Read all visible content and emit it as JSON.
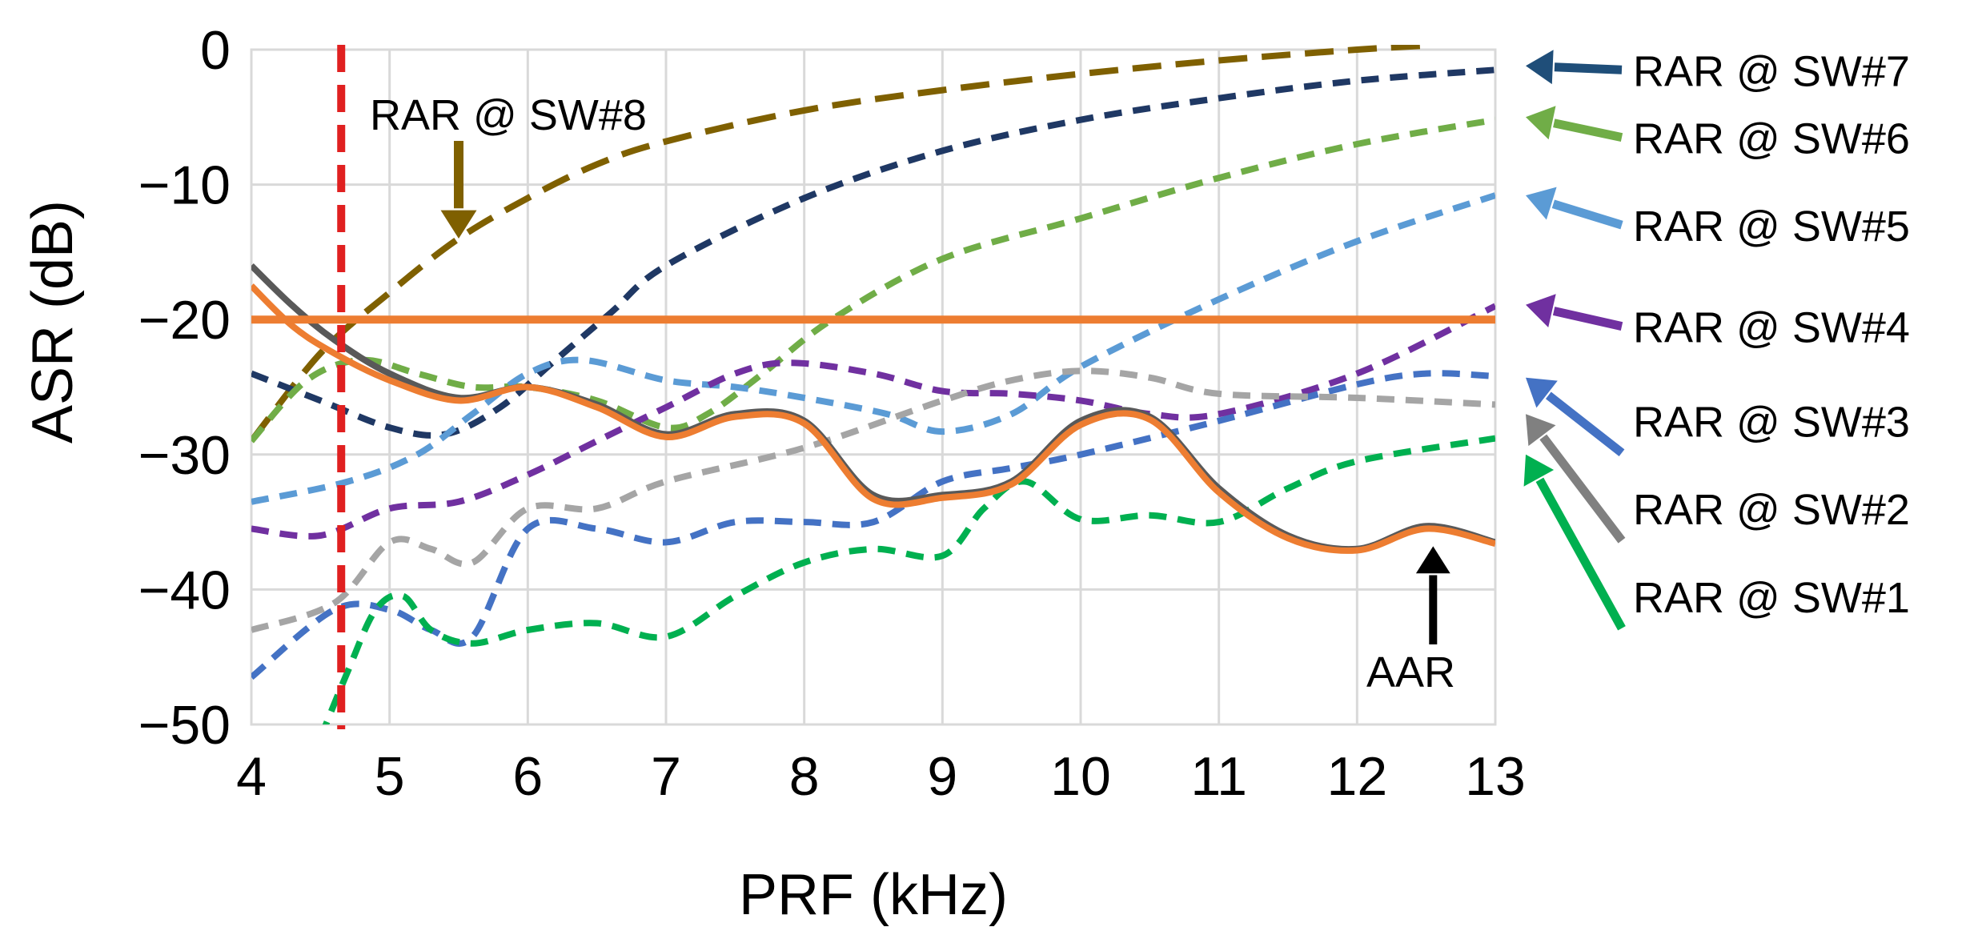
{
  "chart_data": {
    "type": "line",
    "title": "",
    "xlabel": "PRF (kHz)",
    "ylabel": "ASR (dB)",
    "xlim": [
      4,
      13
    ],
    "ylim": [
      -50,
      0
    ],
    "x_ticks": [
      4,
      5,
      6,
      7,
      8,
      9,
      10,
      11,
      12,
      13
    ],
    "y_ticks": [
      0,
      -10,
      -20,
      -30,
      -40,
      -50
    ],
    "x_tick_labels": [
      "4",
      "5",
      "6",
      "7",
      "8",
      "9",
      "10",
      "11",
      "12",
      "13"
    ],
    "y_tick_labels": [
      "0",
      "−10",
      "−20",
      "−30",
      "−40",
      "−50"
    ],
    "grid": true,
    "threshold": {
      "value": -20,
      "color": "#ed7d31"
    },
    "marker_line": {
      "x": 4.65,
      "color": "#e02020"
    },
    "series": [
      {
        "name": "RAR @ SW#8",
        "color": "#7f6000",
        "style": "dash-long",
        "points": [
          [
            4,
            -29
          ],
          [
            4.5,
            -22.5
          ],
          [
            5,
            -18
          ],
          [
            5.5,
            -14
          ],
          [
            6,
            -11
          ],
          [
            6.5,
            -8.5
          ],
          [
            7,
            -6.8
          ],
          [
            8,
            -4.5
          ],
          [
            9,
            -3
          ],
          [
            10,
            -1.8
          ],
          [
            11,
            -0.8
          ],
          [
            12,
            0
          ],
          [
            12.5,
            0.3
          ]
        ]
      },
      {
        "name": "RAR @ SW#7",
        "color": "#1f3864",
        "style": "dash",
        "points": [
          [
            4,
            -24
          ],
          [
            4.5,
            -26
          ],
          [
            5,
            -28
          ],
          [
            5.4,
            -28.5
          ],
          [
            5.8,
            -26.5
          ],
          [
            6.2,
            -23
          ],
          [
            6.6,
            -19.5
          ],
          [
            7,
            -16
          ],
          [
            8,
            -11
          ],
          [
            9,
            -7.5
          ],
          [
            10,
            -5.2
          ],
          [
            11,
            -3.6
          ],
          [
            12,
            -2.3
          ],
          [
            13,
            -1.5
          ]
        ]
      },
      {
        "name": "RAR @ SW#6",
        "color": "#70ad47",
        "style": "dash",
        "points": [
          [
            4,
            -29
          ],
          [
            4.4,
            -24.5
          ],
          [
            4.8,
            -23
          ],
          [
            5.2,
            -24
          ],
          [
            5.6,
            -25
          ],
          [
            6,
            -25
          ],
          [
            6.5,
            -26
          ],
          [
            7,
            -28
          ],
          [
            7.3,
            -27
          ],
          [
            7.7,
            -24
          ],
          [
            8.2,
            -20
          ],
          [
            9,
            -15.5
          ],
          [
            10,
            -12.5
          ],
          [
            11,
            -9.5
          ],
          [
            12,
            -7
          ],
          [
            13,
            -5.2
          ]
        ]
      },
      {
        "name": "RAR @ SW#5",
        "color": "#5b9bd5",
        "style": "dash",
        "points": [
          [
            4,
            -33.5
          ],
          [
            4.7,
            -32
          ],
          [
            5.2,
            -30
          ],
          [
            5.6,
            -27
          ],
          [
            6,
            -24
          ],
          [
            6.4,
            -23
          ],
          [
            7,
            -24.5
          ],
          [
            7.5,
            -25
          ],
          [
            8,
            -25.8
          ],
          [
            8.6,
            -27
          ],
          [
            9,
            -28.3
          ],
          [
            9.5,
            -27
          ],
          [
            10,
            -23.5
          ],
          [
            11,
            -18.5
          ],
          [
            12,
            -14.2
          ],
          [
            13,
            -10.8
          ]
        ]
      },
      {
        "name": "RAR @ SW#4",
        "color": "#7030a0",
        "style": "dash",
        "points": [
          [
            4,
            -35.5
          ],
          [
            4.5,
            -36
          ],
          [
            5,
            -34
          ],
          [
            5.5,
            -33.5
          ],
          [
            6,
            -31.5
          ],
          [
            6.5,
            -29
          ],
          [
            7,
            -26.5
          ],
          [
            7.5,
            -24
          ],
          [
            7.9,
            -23.2
          ],
          [
            8.5,
            -24
          ],
          [
            9,
            -25.3
          ],
          [
            9.5,
            -25.5
          ],
          [
            10,
            -26
          ],
          [
            10.5,
            -27
          ],
          [
            11,
            -27
          ],
          [
            12,
            -24
          ],
          [
            13,
            -19
          ]
        ]
      },
      {
        "name": "RAR @ SW#3",
        "color": "#4472c4",
        "style": "dash",
        "points": [
          [
            4,
            -46.5
          ],
          [
            4.6,
            -41.5
          ],
          [
            5,
            -41.5
          ],
          [
            5.3,
            -43
          ],
          [
            5.6,
            -43.5
          ],
          [
            6,
            -35.5
          ],
          [
            6.5,
            -35.5
          ],
          [
            7,
            -36.5
          ],
          [
            7.5,
            -35
          ],
          [
            8,
            -35
          ],
          [
            8.5,
            -35
          ],
          [
            9,
            -32
          ],
          [
            9.5,
            -31
          ],
          [
            10,
            -30
          ],
          [
            11,
            -27.5
          ],
          [
            12,
            -24.8
          ],
          [
            12.5,
            -24
          ],
          [
            13,
            -24.2
          ]
        ]
      },
      {
        "name": "RAR @ SW#2",
        "color": "#a5a5a5",
        "style": "dash",
        "points": [
          [
            4,
            -43
          ],
          [
            4.6,
            -41
          ],
          [
            5,
            -36.5
          ],
          [
            5.3,
            -37
          ],
          [
            5.6,
            -38
          ],
          [
            6,
            -34
          ],
          [
            6.5,
            -34
          ],
          [
            7,
            -32
          ],
          [
            8,
            -29.5
          ],
          [
            9,
            -26
          ],
          [
            9.5,
            -24.5
          ],
          [
            10,
            -23.8
          ],
          [
            10.5,
            -24.3
          ],
          [
            11,
            -25.5
          ],
          [
            12,
            -25.8
          ],
          [
            13,
            -26.3
          ]
        ]
      },
      {
        "name": "RAR @ SW#1",
        "color": "#00b050",
        "style": "dash",
        "points": [
          [
            4.5,
            -51
          ],
          [
            4.7,
            -46
          ],
          [
            4.9,
            -41.5
          ],
          [
            5.1,
            -40.5
          ],
          [
            5.3,
            -43
          ],
          [
            5.6,
            -44
          ],
          [
            6,
            -43
          ],
          [
            6.5,
            -42.5
          ],
          [
            7,
            -43.5
          ],
          [
            7.5,
            -40.5
          ],
          [
            8,
            -38
          ],
          [
            8.5,
            -37
          ],
          [
            9,
            -37.5
          ],
          [
            9.3,
            -34
          ],
          [
            9.6,
            -32
          ],
          [
            10,
            -34.8
          ],
          [
            10.5,
            -34.5
          ],
          [
            11,
            -35
          ],
          [
            11.5,
            -32.5
          ],
          [
            12,
            -30.5
          ],
          [
            13,
            -28.8
          ]
        ]
      },
      {
        "name": "AAR (gray)",
        "color": "#595959",
        "style": "solid",
        "points": [
          [
            4,
            -16
          ],
          [
            4.3,
            -19
          ],
          [
            4.6,
            -21.5
          ],
          [
            5,
            -24
          ],
          [
            5.5,
            -25.8
          ],
          [
            6,
            -25
          ],
          [
            6.5,
            -26.3
          ],
          [
            7,
            -28.5
          ],
          [
            7.5,
            -27
          ],
          [
            8,
            -27.5
          ],
          [
            8.5,
            -33
          ],
          [
            9,
            -33
          ],
          [
            9.5,
            -32
          ],
          [
            10,
            -27.5
          ],
          [
            10.5,
            -27.2
          ],
          [
            11,
            -32.5
          ],
          [
            11.5,
            -36
          ],
          [
            12,
            -37
          ],
          [
            12.5,
            -35.3
          ],
          [
            13,
            -36.5
          ]
        ]
      },
      {
        "name": "AAR",
        "color": "#ed7d31",
        "style": "solid",
        "points": [
          [
            4,
            -17.5
          ],
          [
            4.3,
            -20.5
          ],
          [
            4.6,
            -22.5
          ],
          [
            5,
            -24.5
          ],
          [
            5.5,
            -26
          ],
          [
            6,
            -25
          ],
          [
            6.5,
            -26.5
          ],
          [
            7,
            -28.7
          ],
          [
            7.5,
            -27.2
          ],
          [
            8,
            -27.7
          ],
          [
            8.5,
            -33.3
          ],
          [
            9,
            -33.2
          ],
          [
            9.5,
            -32.2
          ],
          [
            10,
            -27.8
          ],
          [
            10.5,
            -27.4
          ],
          [
            11,
            -32.8
          ],
          [
            11.5,
            -36.2
          ],
          [
            12,
            -37.1
          ],
          [
            12.5,
            -35.5
          ],
          [
            13,
            -36.6
          ]
        ]
      }
    ],
    "annotations": {
      "sw8": "RAR @ SW#8",
      "aar": "AAR",
      "right_labels": [
        "RAR @ SW#7",
        "RAR @ SW#6",
        "RAR @ SW#5",
        "RAR @ SW#4",
        "RAR @ SW#3",
        "RAR @ SW#2",
        "RAR @ SW#1"
      ],
      "right_label_y": [
        -1.5,
        -6.5,
        -13,
        -20.5,
        -27.5,
        -34,
        -40.5
      ],
      "right_arrow_tip_y": [
        -1.2,
        -5.0,
        -10.8,
        -18.9,
        -24.3,
        -27.0,
        -30.0
      ],
      "right_colors": [
        "#1f4e79",
        "#70ad47",
        "#5b9bd5",
        "#7030a0",
        "#4472c4",
        "#808080",
        "#00b050"
      ]
    }
  }
}
